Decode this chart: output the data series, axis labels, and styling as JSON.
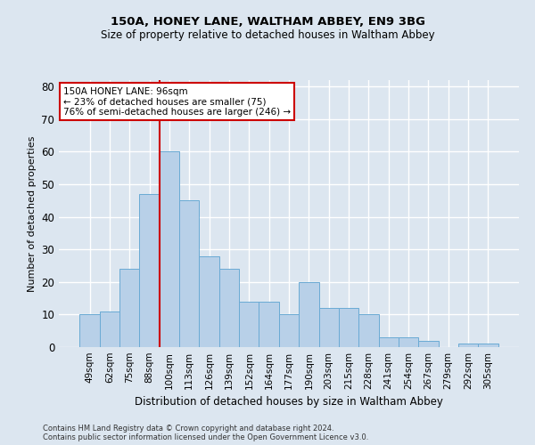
{
  "title1": "150A, HONEY LANE, WALTHAM ABBEY, EN9 3BG",
  "title2": "Size of property relative to detached houses in Waltham Abbey",
  "xlabel": "Distribution of detached houses by size in Waltham Abbey",
  "ylabel": "Number of detached properties",
  "categories": [
    "49sqm",
    "62sqm",
    "75sqm",
    "88sqm",
    "100sqm",
    "113sqm",
    "126sqm",
    "139sqm",
    "152sqm",
    "164sqm",
    "177sqm",
    "190sqm",
    "203sqm",
    "215sqm",
    "228sqm",
    "241sqm",
    "254sqm",
    "267sqm",
    "279sqm",
    "292sqm",
    "305sqm"
  ],
  "values": [
    10,
    11,
    24,
    47,
    60,
    45,
    28,
    24,
    14,
    14,
    10,
    20,
    12,
    12,
    10,
    3,
    3,
    2,
    0,
    1,
    1
  ],
  "bar_color": "#b8d0e8",
  "bar_edge_color": "#6aaad4",
  "bg_color": "#dce6f0",
  "grid_color": "#ffffff",
  "vline_color": "#cc0000",
  "vline_position": 3.5,
  "annotation_line1": "150A HONEY LANE: 96sqm",
  "annotation_line2": "← 23% of detached houses are smaller (75)",
  "annotation_line3": "76% of semi-detached houses are larger (246) →",
  "annotation_box_edge_color": "#cc0000",
  "annotation_box_face_color": "#ffffff",
  "ylim": [
    0,
    82
  ],
  "yticks": [
    0,
    10,
    20,
    30,
    40,
    50,
    60,
    70,
    80
  ],
  "footnote1": "Contains HM Land Registry data © Crown copyright and database right 2024.",
  "footnote2": "Contains public sector information licensed under the Open Government Licence v3.0.",
  "title1_fontsize": 9.5,
  "title2_fontsize": 8.5,
  "xlabel_fontsize": 8.5,
  "ylabel_fontsize": 8,
  "tick_fontsize": 7.5,
  "annotation_fontsize": 7.5,
  "footnote_fontsize": 6
}
